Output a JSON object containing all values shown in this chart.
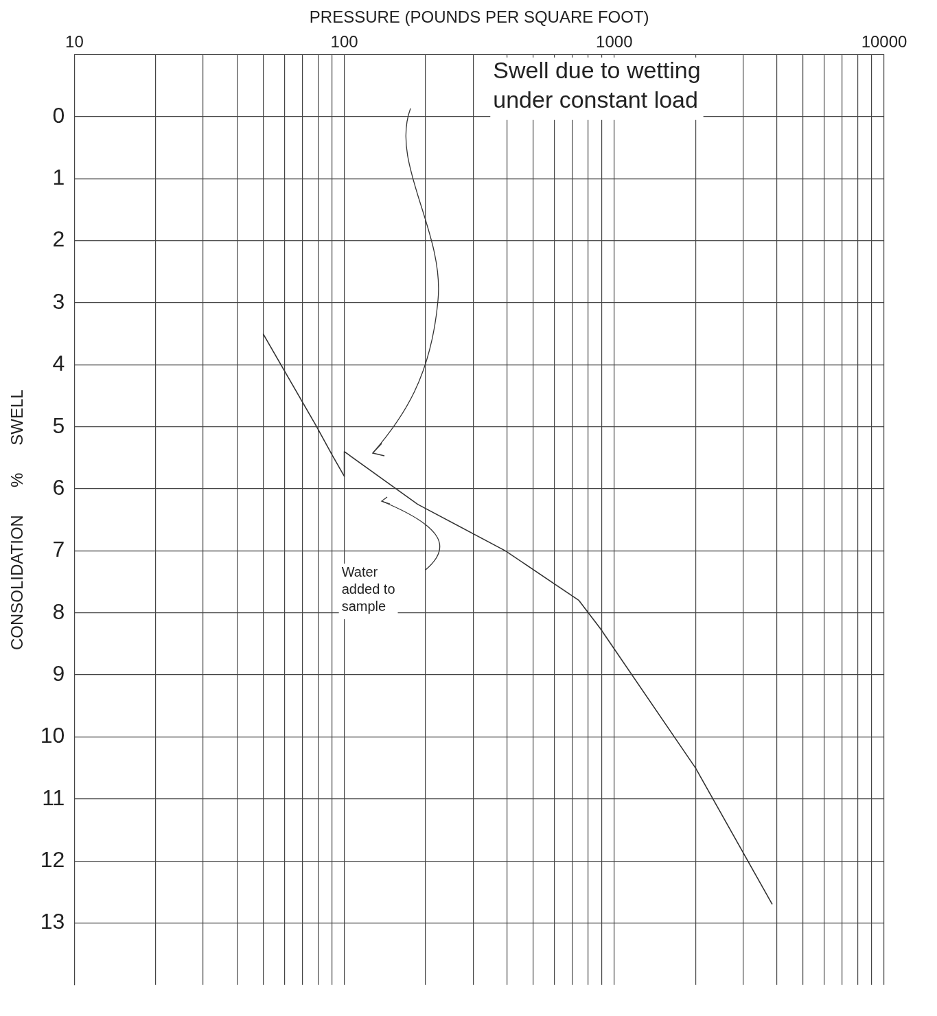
{
  "chart_data": {
    "type": "line",
    "xlabel": "PRESSURE (POUNDS PER SQUARE FOOT)",
    "ylabel": "CONSOLIDATION      %      SWELL",
    "log": "x",
    "grid": true,
    "marker": "none",
    "line_style": "solid",
    "xlim": [
      10,
      10000
    ],
    "xticks": [
      10,
      {
        "value": 20,
        "label": null
      },
      {
        "value": 30,
        "label": null
      },
      {
        "value": 40,
        "label": null
      },
      {
        "value": 50,
        "label": null
      },
      {
        "value": 60,
        "label": null
      },
      {
        "value": 70,
        "label": null
      },
      {
        "value": 80,
        "label": null
      },
      {
        "value": 90,
        "label": null
      },
      100,
      {
        "value": 200,
        "label": null
      },
      {
        "value": 300,
        "label": null
      },
      {
        "value": 400,
        "label": null
      },
      {
        "value": 500,
        "label": null
      },
      {
        "value": 600,
        "label": null
      },
      {
        "value": 700,
        "label": null
      },
      {
        "value": 800,
        "label": null
      },
      {
        "value": 900,
        "label": null
      },
      1000,
      {
        "value": 2000,
        "label": null
      },
      {
        "value": 3000,
        "label": null
      },
      {
        "value": 4000,
        "label": null
      },
      {
        "value": 5000,
        "label": null
      },
      {
        "value": 6000,
        "label": null
      },
      {
        "value": 7000,
        "label": null
      },
      {
        "value": 8000,
        "label": null
      },
      {
        "value": 9000,
        "label": null
      },
      10000
    ],
    "ylim": [
      14,
      -1
    ],
    "yticks": [
      0,
      1,
      2,
      3,
      4,
      5,
      6,
      7,
      8,
      9,
      10,
      11,
      12,
      13
    ],
    "series": [
      {
        "color": "#333333",
        "x": [
          50,
          79,
          90,
          100,
          100,
          187,
          395,
          740,
          887,
          2000,
          3850
        ],
        "values": [
          3.5,
          5.0,
          5.45,
          5.8,
          5.4,
          6.25,
          7.0,
          7.8,
          8.25,
          10.5,
          12.7
        ]
      }
    ],
    "annotations": [
      "Swell due to wetting\nunder constant load",
      "Water\nadded to\nsample"
    ]
  }
}
